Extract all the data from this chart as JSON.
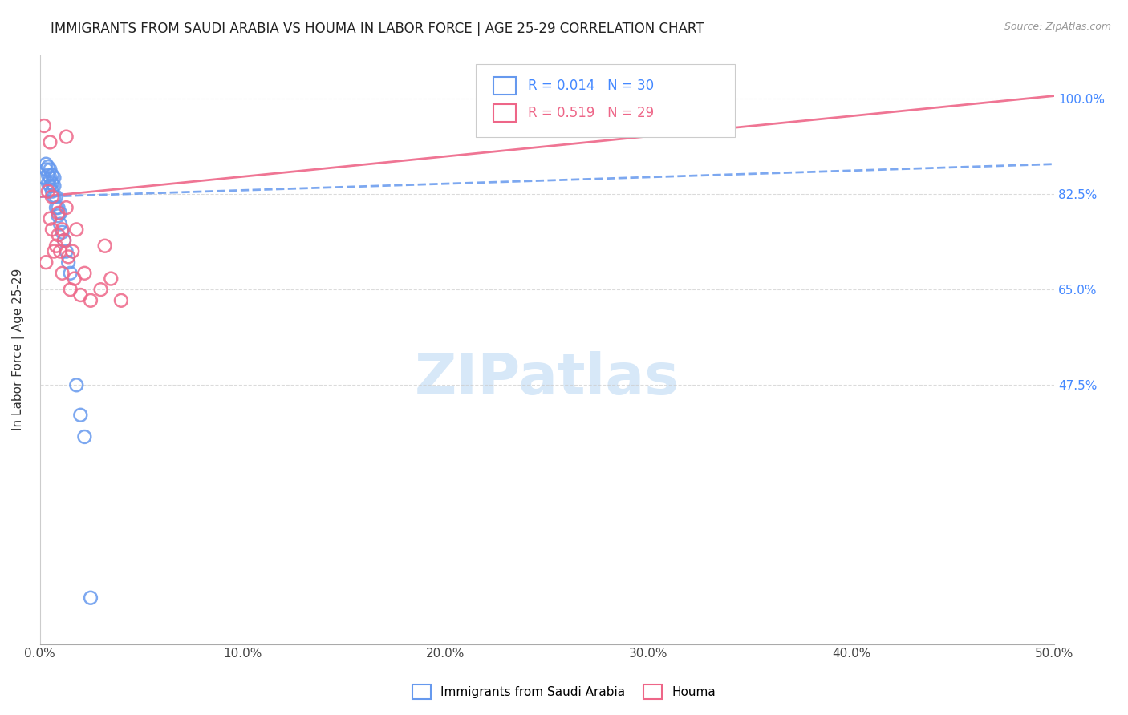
{
  "title": "IMMIGRANTS FROM SAUDI ARABIA VS HOUMA IN LABOR FORCE | AGE 25-29 CORRELATION CHART",
  "source": "Source: ZipAtlas.com",
  "ylabel": "In Labor Force | Age 25-29",
  "xlim": [
    0.0,
    0.5
  ],
  "ylim": [
    0.0,
    1.08
  ],
  "xtick_labels": [
    "0.0%",
    "10.0%",
    "20.0%",
    "30.0%",
    "40.0%",
    "50.0%"
  ],
  "xtick_vals": [
    0.0,
    0.1,
    0.2,
    0.3,
    0.4,
    0.5
  ],
  "ytick_labels": [
    "47.5%",
    "65.0%",
    "82.5%",
    "100.0%"
  ],
  "ytick_vals": [
    0.475,
    0.65,
    0.825,
    1.0
  ],
  "grid_color": "#cccccc",
  "background_color": "#ffffff",
  "blue_color": "#6699ee",
  "pink_color": "#ee6688",
  "blue_label": "Immigrants from Saudi Arabia",
  "pink_label": "Houma",
  "R_blue": 0.014,
  "N_blue": 30,
  "R_pink": 0.519,
  "N_pink": 29,
  "blue_scatter_x": [
    0.002,
    0.003,
    0.003,
    0.004,
    0.004,
    0.004,
    0.005,
    0.005,
    0.005,
    0.006,
    0.006,
    0.006,
    0.007,
    0.007,
    0.007,
    0.008,
    0.008,
    0.009,
    0.009,
    0.01,
    0.01,
    0.011,
    0.012,
    0.013,
    0.014,
    0.015,
    0.018,
    0.02,
    0.022,
    0.025
  ],
  "blue_scatter_y": [
    0.855,
    0.87,
    0.88,
    0.845,
    0.86,
    0.875,
    0.84,
    0.855,
    0.87,
    0.83,
    0.845,
    0.86,
    0.82,
    0.84,
    0.855,
    0.8,
    0.82,
    0.785,
    0.8,
    0.77,
    0.79,
    0.755,
    0.74,
    0.72,
    0.7,
    0.68,
    0.475,
    0.42,
    0.38,
    0.085
  ],
  "pink_scatter_x": [
    0.002,
    0.003,
    0.004,
    0.005,
    0.005,
    0.006,
    0.006,
    0.007,
    0.008,
    0.009,
    0.009,
    0.01,
    0.011,
    0.011,
    0.012,
    0.013,
    0.014,
    0.015,
    0.016,
    0.017,
    0.018,
    0.013,
    0.02,
    0.022,
    0.025,
    0.03,
    0.032,
    0.035,
    0.04
  ],
  "pink_scatter_y": [
    0.95,
    0.7,
    0.83,
    0.92,
    0.78,
    0.76,
    0.82,
    0.72,
    0.73,
    0.79,
    0.75,
    0.72,
    0.76,
    0.68,
    0.74,
    0.8,
    0.71,
    0.65,
    0.72,
    0.67,
    0.76,
    0.93,
    0.64,
    0.68,
    0.63,
    0.65,
    0.73,
    0.67,
    0.63
  ],
  "blue_trend_x": [
    0.0,
    0.5
  ],
  "blue_trend_y": [
    0.82,
    0.88
  ],
  "pink_trend_x": [
    0.0,
    0.5
  ],
  "pink_trend_y": [
    0.82,
    1.005
  ],
  "marker_size": 130,
  "title_fontsize": 12,
  "label_fontsize": 11,
  "tick_fontsize": 11,
  "source_fontsize": 9,
  "legend_fontsize": 12
}
